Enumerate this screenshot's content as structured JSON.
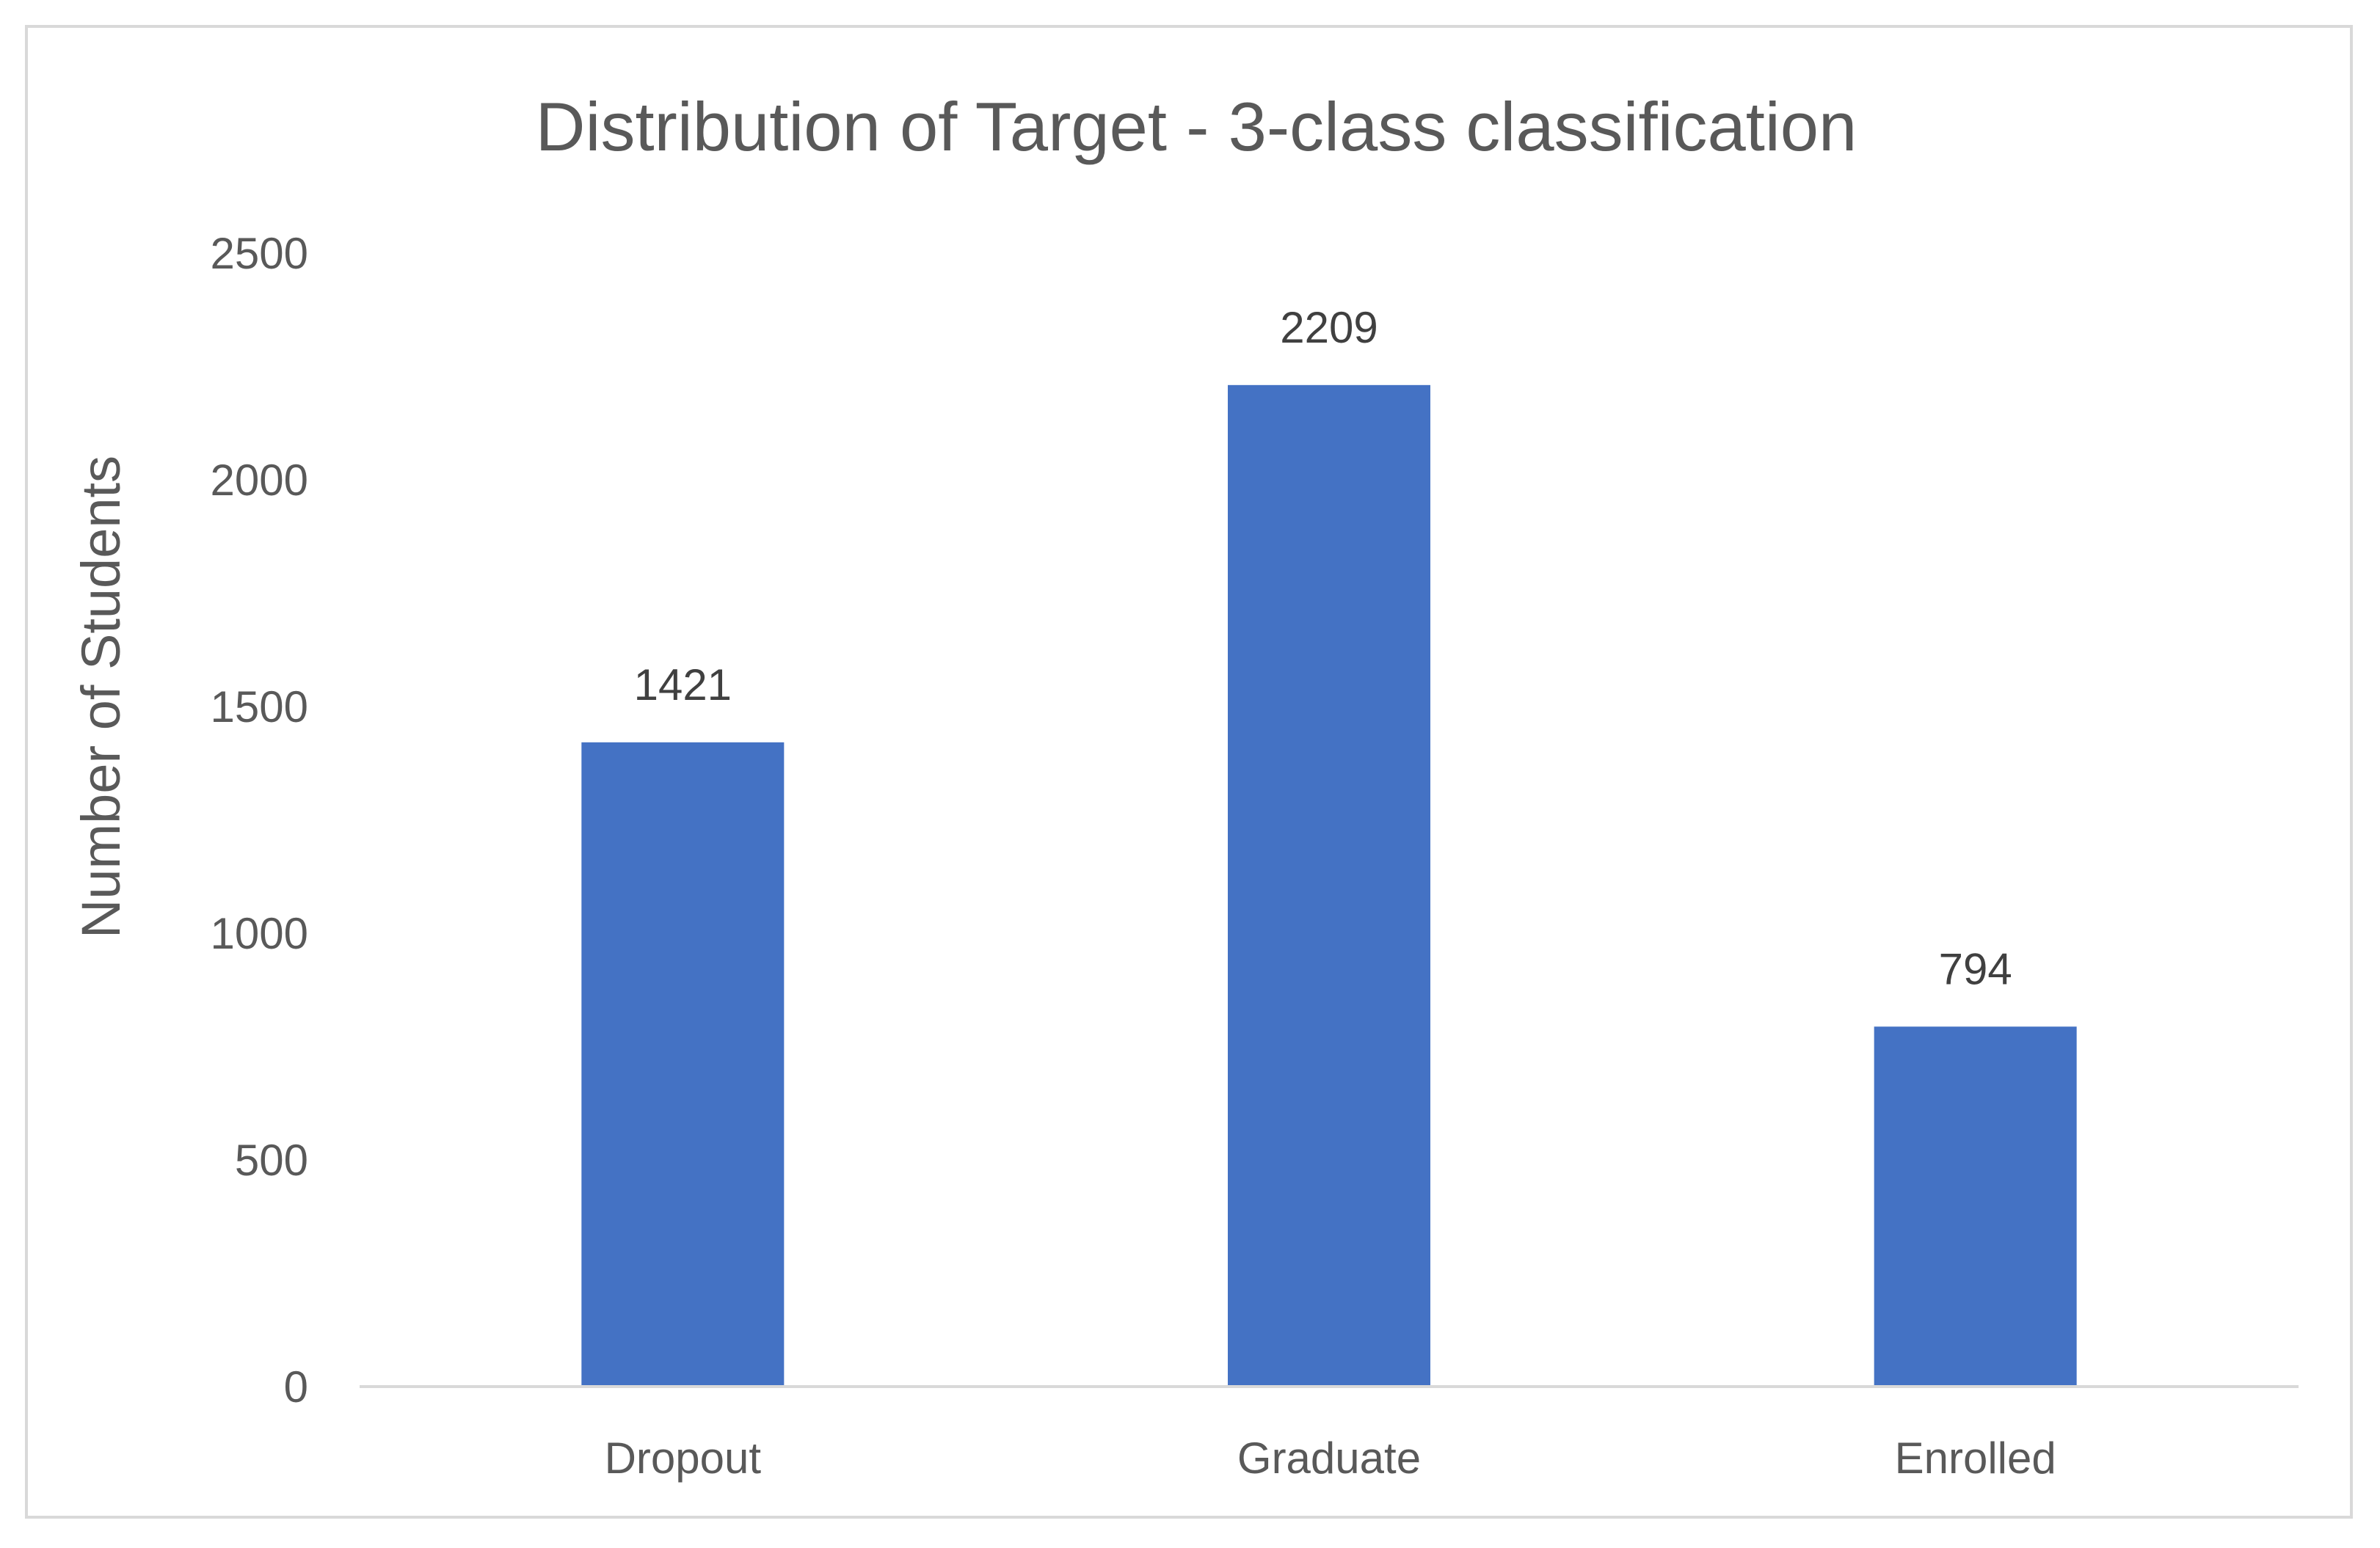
{
  "chart_data": {
    "type": "bar",
    "title": "Distribution of Target - 3-class classification",
    "xlabel": "",
    "ylabel": "Number of Students",
    "categories": [
      "Dropout",
      "Graduate",
      "Enrolled"
    ],
    "values": [
      1421,
      2209,
      794
    ],
    "data_labels": [
      "1421",
      "2209",
      "794"
    ],
    "yticks": [
      "0",
      "500",
      "1000",
      "1500",
      "2000",
      "2500"
    ],
    "ylim": [
      0,
      2500
    ],
    "grid": false,
    "legend": "none",
    "bar_color": "#4472c4",
    "axis_line_color": "#d9d9d9"
  }
}
